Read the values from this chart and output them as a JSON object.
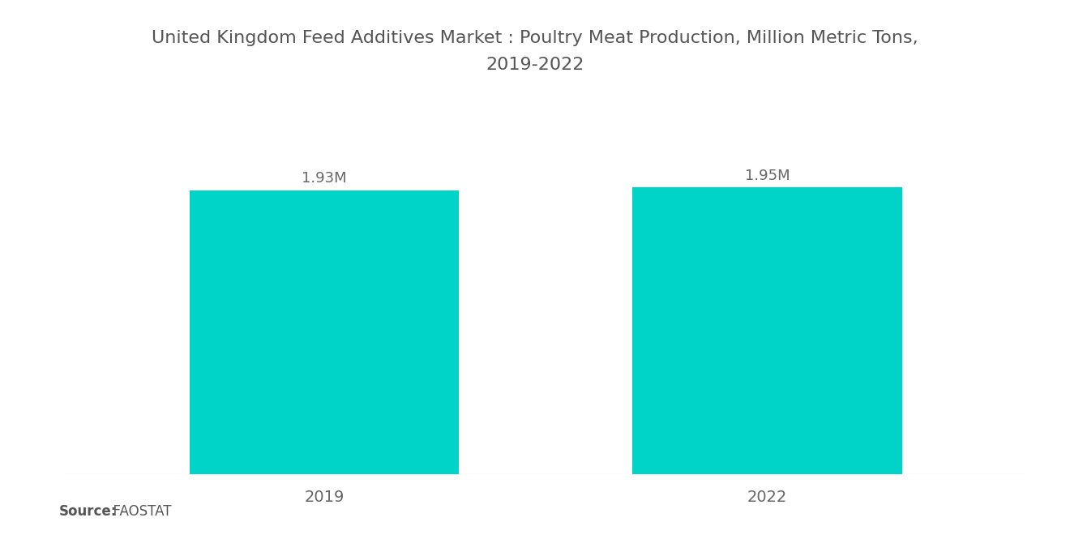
{
  "title_line1": "United Kingdom Feed Additives Market : Poultry Meat Production, Million Metric Tons,",
  "title_line2": "2019-2022",
  "categories": [
    "2019",
    "2022"
  ],
  "values": [
    1.93,
    1.95
  ],
  "labels": [
    "1.93M",
    "1.95M"
  ],
  "bar_color": "#00D4C8",
  "background_color": "#ffffff",
  "source_bold": "Source:",
  "source_normal": "  FAOSTAT",
  "title_fontsize": 16,
  "label_fontsize": 13,
  "tick_fontsize": 14,
  "source_fontsize": 12,
  "ylim": [
    0,
    2.6
  ],
  "bar_width": 0.28,
  "x_positions": [
    0.27,
    0.73
  ],
  "xlim": [
    0,
    1
  ]
}
